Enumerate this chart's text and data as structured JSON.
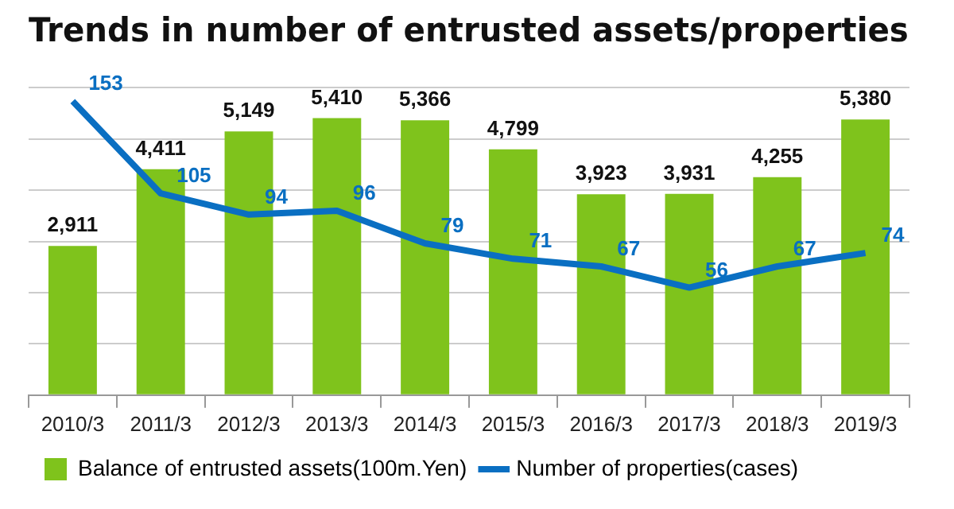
{
  "chart_data": {
    "type": "bar",
    "title": "Trends in number of entrusted assets/properties",
    "categories": [
      "2010/3",
      "2011/3",
      "2012/3",
      "2013/3",
      "2014/3",
      "2015/3",
      "2016/3",
      "2017/3",
      "2018/3",
      "2019/3"
    ],
    "series": [
      {
        "name": "Balance of entrusted assets(100m.Yen)",
        "color": "#7fc31c",
        "values": [
          2911,
          4411,
          5149,
          5410,
          5366,
          4799,
          3923,
          3931,
          4255,
          5380
        ],
        "value_labels": [
          "2,911",
          "4,411",
          "5,149",
          "5,410",
          "5,366",
          "4,799",
          "3,923",
          "3,931",
          "4,255",
          "5,380"
        ]
      },
      {
        "name": "Number of properties(cases)",
        "type": "line",
        "axis": "y2",
        "color": "#0a6fc2",
        "values": [
          153,
          105,
          94,
          96,
          79,
          71,
          67,
          56,
          67,
          74
        ],
        "value_labels": [
          "153",
          "105",
          "94",
          "96",
          "79",
          "71",
          "67",
          "56",
          "67",
          "74"
        ]
      }
    ],
    "grid": "y",
    "legend": "bottom",
    "tick_labels": "x",
    "marker": "none"
  }
}
